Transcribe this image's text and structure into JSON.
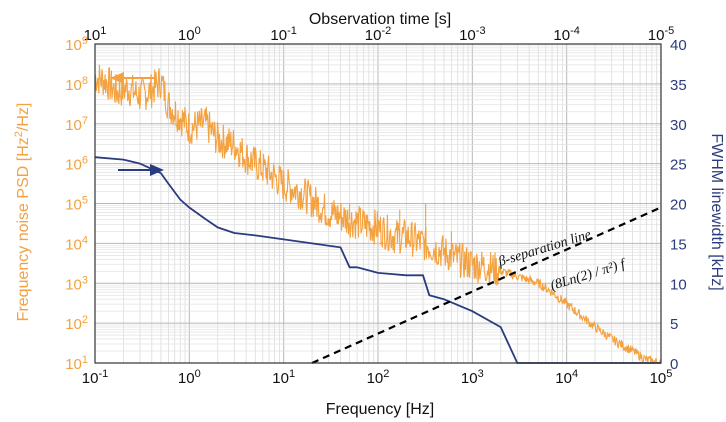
{
  "chart_data": {
    "type": "line",
    "x_axis_bottom": {
      "label": "Frequency [Hz]",
      "scale": "log",
      "range": [
        0.1,
        100000
      ],
      "ticks": [
        {
          "value": 0.1,
          "base": "10",
          "exp": "-1"
        },
        {
          "value": 1,
          "base": "10",
          "exp": "0"
        },
        {
          "value": 10,
          "base": "10",
          "exp": "1"
        },
        {
          "value": 100,
          "base": "10",
          "exp": "2"
        },
        {
          "value": 1000,
          "base": "10",
          "exp": "3"
        },
        {
          "value": 10000,
          "base": "10",
          "exp": "4"
        },
        {
          "value": 100000,
          "base": "10",
          "exp": "5"
        }
      ]
    },
    "x_axis_top": {
      "label": "Observation time [s]",
      "scale": "log",
      "range": [
        10,
        1e-05
      ],
      "ticks": [
        {
          "value": 10,
          "base": "10",
          "exp": "1"
        },
        {
          "value": 1,
          "base": "10",
          "exp": "0"
        },
        {
          "value": 0.1,
          "base": "10",
          "exp": "-1"
        },
        {
          "value": 0.01,
          "base": "10",
          "exp": "-2"
        },
        {
          "value": 0.001,
          "base": "10",
          "exp": "-3"
        },
        {
          "value": 0.0001,
          "base": "10",
          "exp": "-4"
        },
        {
          "value": 1e-05,
          "base": "10",
          "exp": "-5"
        }
      ]
    },
    "y_axis_left": {
      "label_prefix": "Frequency noise PSD [Hz",
      "label_sup": "2",
      "label_suffix": "/Hz]",
      "scale": "log",
      "range": [
        10,
        1000000000
      ],
      "color": "#f4a13f",
      "ticks": [
        {
          "value": 10,
          "base": "10",
          "exp": "1"
        },
        {
          "value": 100,
          "base": "10",
          "exp": "2"
        },
        {
          "value": 1000,
          "base": "10",
          "exp": "3"
        },
        {
          "value": 10000,
          "base": "10",
          "exp": "4"
        },
        {
          "value": 100000,
          "base": "10",
          "exp": "5"
        },
        {
          "value": 1000000,
          "base": "10",
          "exp": "6"
        },
        {
          "value": 10000000,
          "base": "10",
          "exp": "7"
        },
        {
          "value": 100000000,
          "base": "10",
          "exp": "8"
        },
        {
          "value": 1000000000,
          "base": "10",
          "exp": "9"
        }
      ]
    },
    "y_axis_right": {
      "label": "FWHM linewidth [kHz]",
      "scale": "linear",
      "range": [
        0,
        40
      ],
      "color": "#2b3c7e",
      "ticks": [
        "0",
        "5",
        "10",
        "15",
        "20",
        "25",
        "30",
        "35",
        "40"
      ]
    },
    "grid": true,
    "series": [
      {
        "name": "Frequency noise PSD",
        "axis": "left",
        "color": "#f4a13f",
        "x": [
          0.1,
          0.13,
          0.17,
          0.22,
          0.3,
          0.4,
          0.5,
          0.6,
          0.8,
          1,
          1.5,
          2,
          3,
          4,
          5,
          7,
          10,
          15,
          20,
          30,
          50,
          70,
          100,
          150,
          200,
          300,
          500,
          700,
          1000,
          1500,
          2000,
          3000,
          5000,
          7000,
          10000,
          20000,
          30000,
          50000,
          70000,
          100000
        ],
        "y": [
          150000000.0,
          120000000.0,
          60000000.0,
          80000000.0,
          50000000.0,
          70000000.0,
          120000000.0,
          30000000.0,
          15000000.0,
          8000000.0,
          10000000.0,
          4000000.0,
          3000000.0,
          1500000.0,
          1000000.0,
          600000.0,
          300000.0,
          200000.0,
          120000.0,
          60000.0,
          40000.0,
          30000.0,
          25000.0,
          15000.0,
          15000.0,
          10000.0,
          6000,
          4000,
          3000,
          2500,
          2000,
          1500,
          1000,
          600,
          300,
          80,
          40,
          20,
          12,
          10
        ]
      },
      {
        "name": "FWHM linewidth",
        "axis": "right",
        "color": "#2b3c7e",
        "x": [
          0.1,
          0.2,
          0.3,
          0.5,
          0.6,
          0.8,
          1,
          1.5,
          2,
          3,
          5,
          10,
          20,
          40,
          50,
          60,
          100,
          200,
          300,
          350,
          500,
          1000,
          2000,
          3000,
          100000
        ],
        "y": [
          25.8,
          25.5,
          25,
          23.8,
          22.5,
          20.5,
          19.5,
          18,
          17,
          16.3,
          16,
          15.5,
          15,
          14.5,
          12,
          12,
          11.3,
          11,
          11,
          8.5,
          8,
          6.5,
          4.5,
          0,
          0
        ]
      }
    ],
    "reference_line": {
      "label_main": "-separation line",
      "label_formula": "(8Ln(2) / π²) f",
      "label_greek": "β",
      "x": [
        20,
        100000
      ],
      "y": [
        10,
        80000.0
      ],
      "style": "dashed",
      "color": "#000000"
    },
    "arrows": [
      {
        "direction": "left",
        "color": "#f4a13f",
        "points_to": "left axis"
      },
      {
        "direction": "right",
        "color": "#2b3c7e",
        "points_to": "right axis"
      }
    ]
  }
}
